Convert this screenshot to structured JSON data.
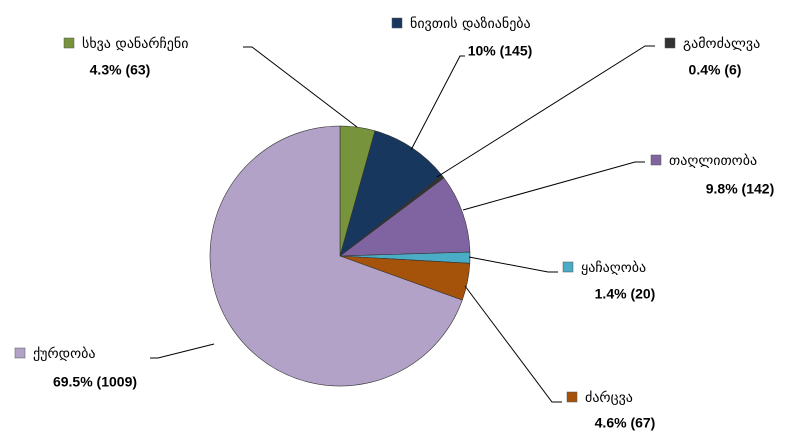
{
  "chart_data": {
    "type": "pie",
    "categories": [
      "სხვა დანარჩენი",
      "ნივთის დაზიანება",
      "გამოძალვა",
      "თაღლითობა",
      "ყაჩაღობა",
      "ძარცვა",
      "ქურდობა"
    ],
    "values": [
      63,
      145,
      6,
      142,
      20,
      67,
      1009
    ],
    "value_labels": [
      "4.3% (63)",
      "10% (145)",
      "0.4% (6)",
      "9.8% (142)",
      "1.4% (20)",
      "4.6% (67)",
      "69.5% (1009)"
    ],
    "colors": [
      "#77933c",
      "#17375e",
      "#333333",
      "#8064a2",
      "#4bacc6",
      "#a5520a",
      "#b3a2c7"
    ]
  }
}
